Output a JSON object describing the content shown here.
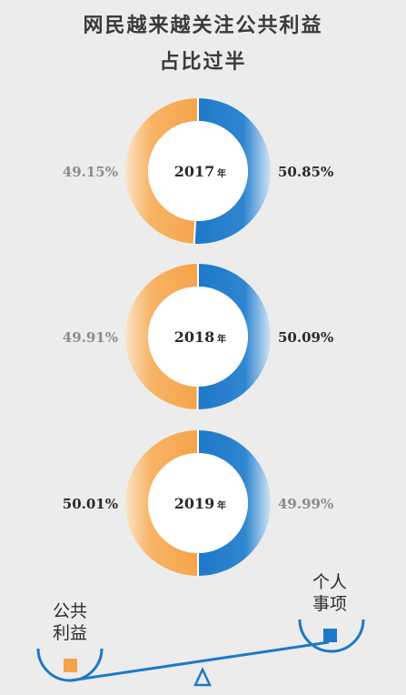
{
  "title_line1": "网民越来越关注公共利益",
  "title_line2": "占比过半",
  "colors": {
    "public": "#f5a34a",
    "personal": "#1e78c8",
    "highlight_text": "#2a2a2a",
    "muted_text": "#8c8c8c",
    "scale": "#1e78c8"
  },
  "chart_data": {
    "type": "pie",
    "variant": "donut",
    "charts": [
      {
        "year_label": "2017",
        "year_unit": "年",
        "public": 49.15,
        "personal": 50.85,
        "public_label": "49.15%",
        "personal_label": "50.85%"
      },
      {
        "year_label": "2018",
        "year_unit": "年",
        "public": 49.91,
        "personal": 50.09,
        "public_label": "49.91%",
        "personal_label": "50.09%"
      },
      {
        "year_label": "2019",
        "year_unit": "年",
        "public": 50.01,
        "personal": 49.99,
        "public_label": "50.01%",
        "personal_label": "49.99%"
      }
    ]
  },
  "legend": {
    "public_line1": "公共",
    "public_line2": "利益",
    "personal_line1": "个人",
    "personal_line2": "事项"
  }
}
